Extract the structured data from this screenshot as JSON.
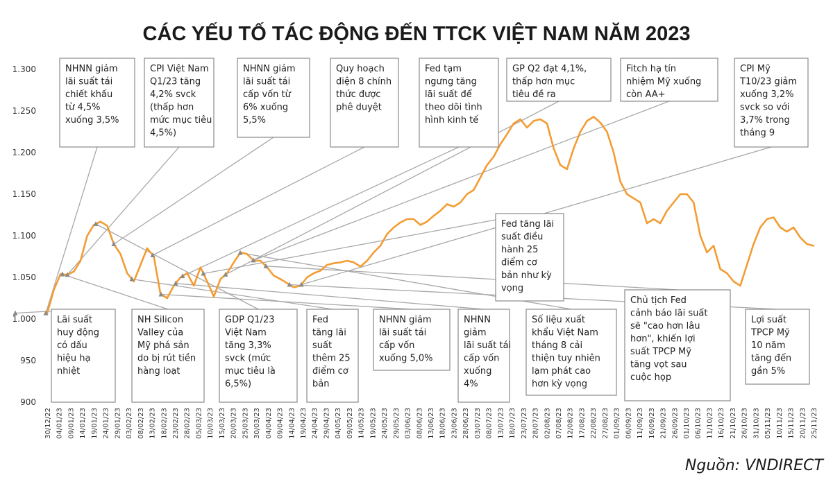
{
  "chart_data": {
    "type": "line",
    "title": "CÁC YẾU TỐ TÁC ĐỘNG ĐẾN TTCK VIỆT NAM NĂM 2023",
    "source": "Nguồn: VNDIRECT",
    "line_color": "#f39c33",
    "ylim": [
      900,
      1300
    ],
    "y_ticks": [
      "1.300",
      "1.250",
      "1.200",
      "1.150",
      "1.100",
      "1.050",
      "1.000",
      "950",
      "900"
    ],
    "x_ticks": [
      "30/12/22",
      "04/01/23",
      "09/01/23",
      "14/01/23",
      "19/01/23",
      "24/01/23",
      "29/01/23",
      "03/02/23",
      "08/02/23",
      "13/02/23",
      "18/02/23",
      "23/02/23",
      "28/02/23",
      "05/03/23",
      "10/03/23",
      "15/03/23",
      "20/03/23",
      "25/03/23",
      "30/03/23",
      "04/04/23",
      "09/04/23",
      "14/04/23",
      "19/04/23",
      "24/04/23",
      "29/04/23",
      "04/05/23",
      "09/05/23",
      "14/05/23",
      "19/05/23",
      "24/05/23",
      "29/05/23",
      "03/06/23",
      "08/06/23",
      "13/06/23",
      "18/06/23",
      "23/06/23",
      "28/06/23",
      "03/07/23",
      "08/07/23",
      "13/07/23",
      "18/07/23",
      "23/07/23",
      "28/07/23",
      "02/08/23",
      "07/08/23",
      "12/08/23",
      "17/08/23",
      "22/08/23",
      "27/08/23",
      "01/09/23",
      "06/09/23",
      "11/09/23",
      "16/09/23",
      "21/09/23",
      "26/09/23",
      "01/10/23",
      "06/10/23",
      "11/10/23",
      "16/10/23",
      "21/10/23",
      "26/10/23",
      "31/10/23",
      "05/11/23",
      "10/11/23",
      "15/11/23",
      "20/11/23",
      "25/11/23"
    ],
    "series": [
      {
        "values": [
          [
            0,
            1007
          ],
          [
            1,
            1035
          ],
          [
            2,
            1054
          ],
          [
            3,
            1053
          ],
          [
            4,
            1057
          ],
          [
            5,
            1070
          ],
          [
            6,
            1100
          ],
          [
            7,
            1113
          ],
          [
            8,
            1117
          ],
          [
            9,
            1112
          ],
          [
            10,
            1090
          ],
          [
            11,
            1078
          ],
          [
            12,
            1055
          ],
          [
            13,
            1045
          ],
          [
            14,
            1065
          ],
          [
            15,
            1085
          ],
          [
            16,
            1075
          ],
          [
            17,
            1030
          ],
          [
            18,
            1025
          ],
          [
            19,
            1040
          ],
          [
            20,
            1050
          ],
          [
            21,
            1055
          ],
          [
            22,
            1040
          ],
          [
            23,
            1062
          ],
          [
            24,
            1045
          ],
          [
            25,
            1027
          ],
          [
            26,
            1048
          ],
          [
            27,
            1055
          ],
          [
            28,
            1068
          ],
          [
            29,
            1080
          ],
          [
            30,
            1078
          ],
          [
            31,
            1070
          ],
          [
            32,
            1070
          ],
          [
            33,
            1062
          ],
          [
            34,
            1052
          ],
          [
            35,
            1048
          ],
          [
            36,
            1043
          ],
          [
            37,
            1038
          ],
          [
            38,
            1040
          ],
          [
            39,
            1050
          ],
          [
            40,
            1055
          ],
          [
            41,
            1058
          ],
          [
            42,
            1065
          ],
          [
            43,
            1067
          ],
          [
            44,
            1068
          ],
          [
            45,
            1070
          ],
          [
            46,
            1068
          ],
          [
            47,
            1063
          ],
          [
            48,
            1070
          ],
          [
            49,
            1080
          ],
          [
            50,
            1088
          ],
          [
            51,
            1102
          ],
          [
            52,
            1110
          ],
          [
            53,
            1116
          ],
          [
            54,
            1120
          ],
          [
            55,
            1120
          ],
          [
            56,
            1113
          ],
          [
            57,
            1117
          ],
          [
            58,
            1124
          ],
          [
            59,
            1130
          ],
          [
            60,
            1138
          ],
          [
            61,
            1135
          ],
          [
            62,
            1140
          ],
          [
            63,
            1150
          ],
          [
            64,
            1155
          ],
          [
            65,
            1170
          ],
          [
            66,
            1185
          ],
          [
            67,
            1195
          ],
          [
            68,
            1210
          ],
          [
            69,
            1222
          ],
          [
            70,
            1235
          ],
          [
            71,
            1240
          ],
          [
            72,
            1230
          ],
          [
            73,
            1238
          ],
          [
            74,
            1240
          ],
          [
            75,
            1235
          ],
          [
            76,
            1205
          ],
          [
            77,
            1185
          ],
          [
            78,
            1180
          ],
          [
            79,
            1205
          ],
          [
            80,
            1225
          ],
          [
            81,
            1238
          ],
          [
            82,
            1243
          ],
          [
            83,
            1236
          ],
          [
            84,
            1225
          ],
          [
            85,
            1200
          ],
          [
            86,
            1165
          ],
          [
            87,
            1150
          ],
          [
            88,
            1145
          ],
          [
            89,
            1140
          ],
          [
            90,
            1115
          ],
          [
            91,
            1120
          ],
          [
            92,
            1115
          ],
          [
            93,
            1130
          ],
          [
            94,
            1140
          ],
          [
            95,
            1150
          ],
          [
            96,
            1150
          ],
          [
            97,
            1140
          ],
          [
            98,
            1100
          ],
          [
            99,
            1080
          ],
          [
            100,
            1088
          ],
          [
            101,
            1060
          ],
          [
            102,
            1055
          ],
          [
            103,
            1045
          ],
          [
            104,
            1040
          ],
          [
            105,
            1065
          ],
          [
            106,
            1090
          ],
          [
            107,
            1110
          ],
          [
            108,
            1120
          ],
          [
            109,
            1122
          ],
          [
            110,
            1110
          ],
          [
            111,
            1105
          ],
          [
            112,
            1110
          ],
          [
            113,
            1098
          ],
          [
            114,
            1090
          ],
          [
            115,
            1088
          ]
        ]
      }
    ],
    "annotations": [
      {
        "lines": [
          "NHNN giảm",
          "lãi suất tái",
          "chiết khấu",
          "từ 4,5%",
          "xuống 3,5%"
        ],
        "at": 66
      },
      {
        "lines": [
          "CPI Việt Nam",
          "Q1/23 tăng",
          "4,2% svck",
          "(thấp hơn",
          "mức mục tiêu",
          "4,5%)"
        ],
        "at": 97
      },
      {
        "lines": [
          "NHNN giảm",
          "lãi suất tái",
          "cấp vốn từ",
          "6% xuống",
          "5,5%"
        ],
        "at": 164
      },
      {
        "lines": [
          "Quy hoạch",
          "điện 8 chính",
          "thức được",
          "phê duyệt"
        ],
        "at": 220
      },
      {
        "lines": [
          "Fed tạm",
          "ngưng tăng",
          "lãi suất để",
          "theo dõi tình",
          "hình kinh tế"
        ],
        "at": 263
      },
      {
        "lines": [
          "GP Q2 đạt 4,1%,",
          "thấp hơn mục",
          "tiêu đề ra"
        ],
        "at": 325
      },
      {
        "lines": [
          "Fitch hạ tín",
          "nhiệm Mỹ xuống",
          "còn AA+"
        ],
        "at": 365
      },
      {
        "lines": [
          "CPI Mỹ",
          "T10/23 giảm",
          "xuống 3,2%",
          "svck so với",
          "3,7% trong",
          "tháng 9"
        ],
        "at": 434
      },
      {
        "lines": [
          "Fed tăng lãi",
          "suất điều",
          "hành 25",
          "điểm cơ",
          "bản như kỳ",
          "vọng"
        ],
        "at": 293
      },
      {
        "lines": [
          "Lãi suất",
          "huy động",
          "có dấu",
          "hiệu hạ",
          "nhiệt"
        ],
        "at": 22
      },
      {
        "lines": [
          "NH Silicon",
          "Valley của",
          "Mỹ phá sản",
          "do bị rút tiền",
          "hàng loạt"
        ],
        "at": 90
      },
      {
        "lines": [
          "GDP Q1/23",
          "Việt Nam",
          "tăng 3,3%",
          "svck (mức",
          "mục tiêu là",
          "6,5%)"
        ],
        "at": 138
      },
      {
        "lines": [
          "Fed",
          "tăng lãi",
          "suất",
          "thêm 25",
          "điểm cơ",
          "bản"
        ],
        "at": 190
      },
      {
        "lines": [
          "NHNN giảm",
          "lãi suất tái",
          "cấp vốn",
          "xuống 5,0%"
        ],
        "at": 232
      },
      {
        "lines": [
          "NHNN",
          "giảm",
          "lãi suất tái",
          "cấp vốn",
          "xuống",
          "4%"
        ],
        "at": 253
      },
      {
        "lines": [
          "Số liệu xuất",
          "khẩu Việt Nam",
          "tháng 8 cải",
          "thiện tuy nhiên",
          "lạm phát cao",
          "hơn kỳ vọng"
        ],
        "at": 346
      },
      {
        "lines": [
          "Chủ tịch Fed",
          "cảnh báo lãi suất",
          "sẽ \"cao hơn lâu",
          "hơn\", khiến lợi",
          "suất TPCP Mỹ",
          "tăng vọt sau",
          "cuộc họp"
        ],
        "at": 383
      },
      {
        "lines": [
          "Lợi suất",
          "TPCP Mỹ",
          "10 năm",
          "tăng đến",
          "gần 5%"
        ],
        "at": 417
      }
    ]
  }
}
